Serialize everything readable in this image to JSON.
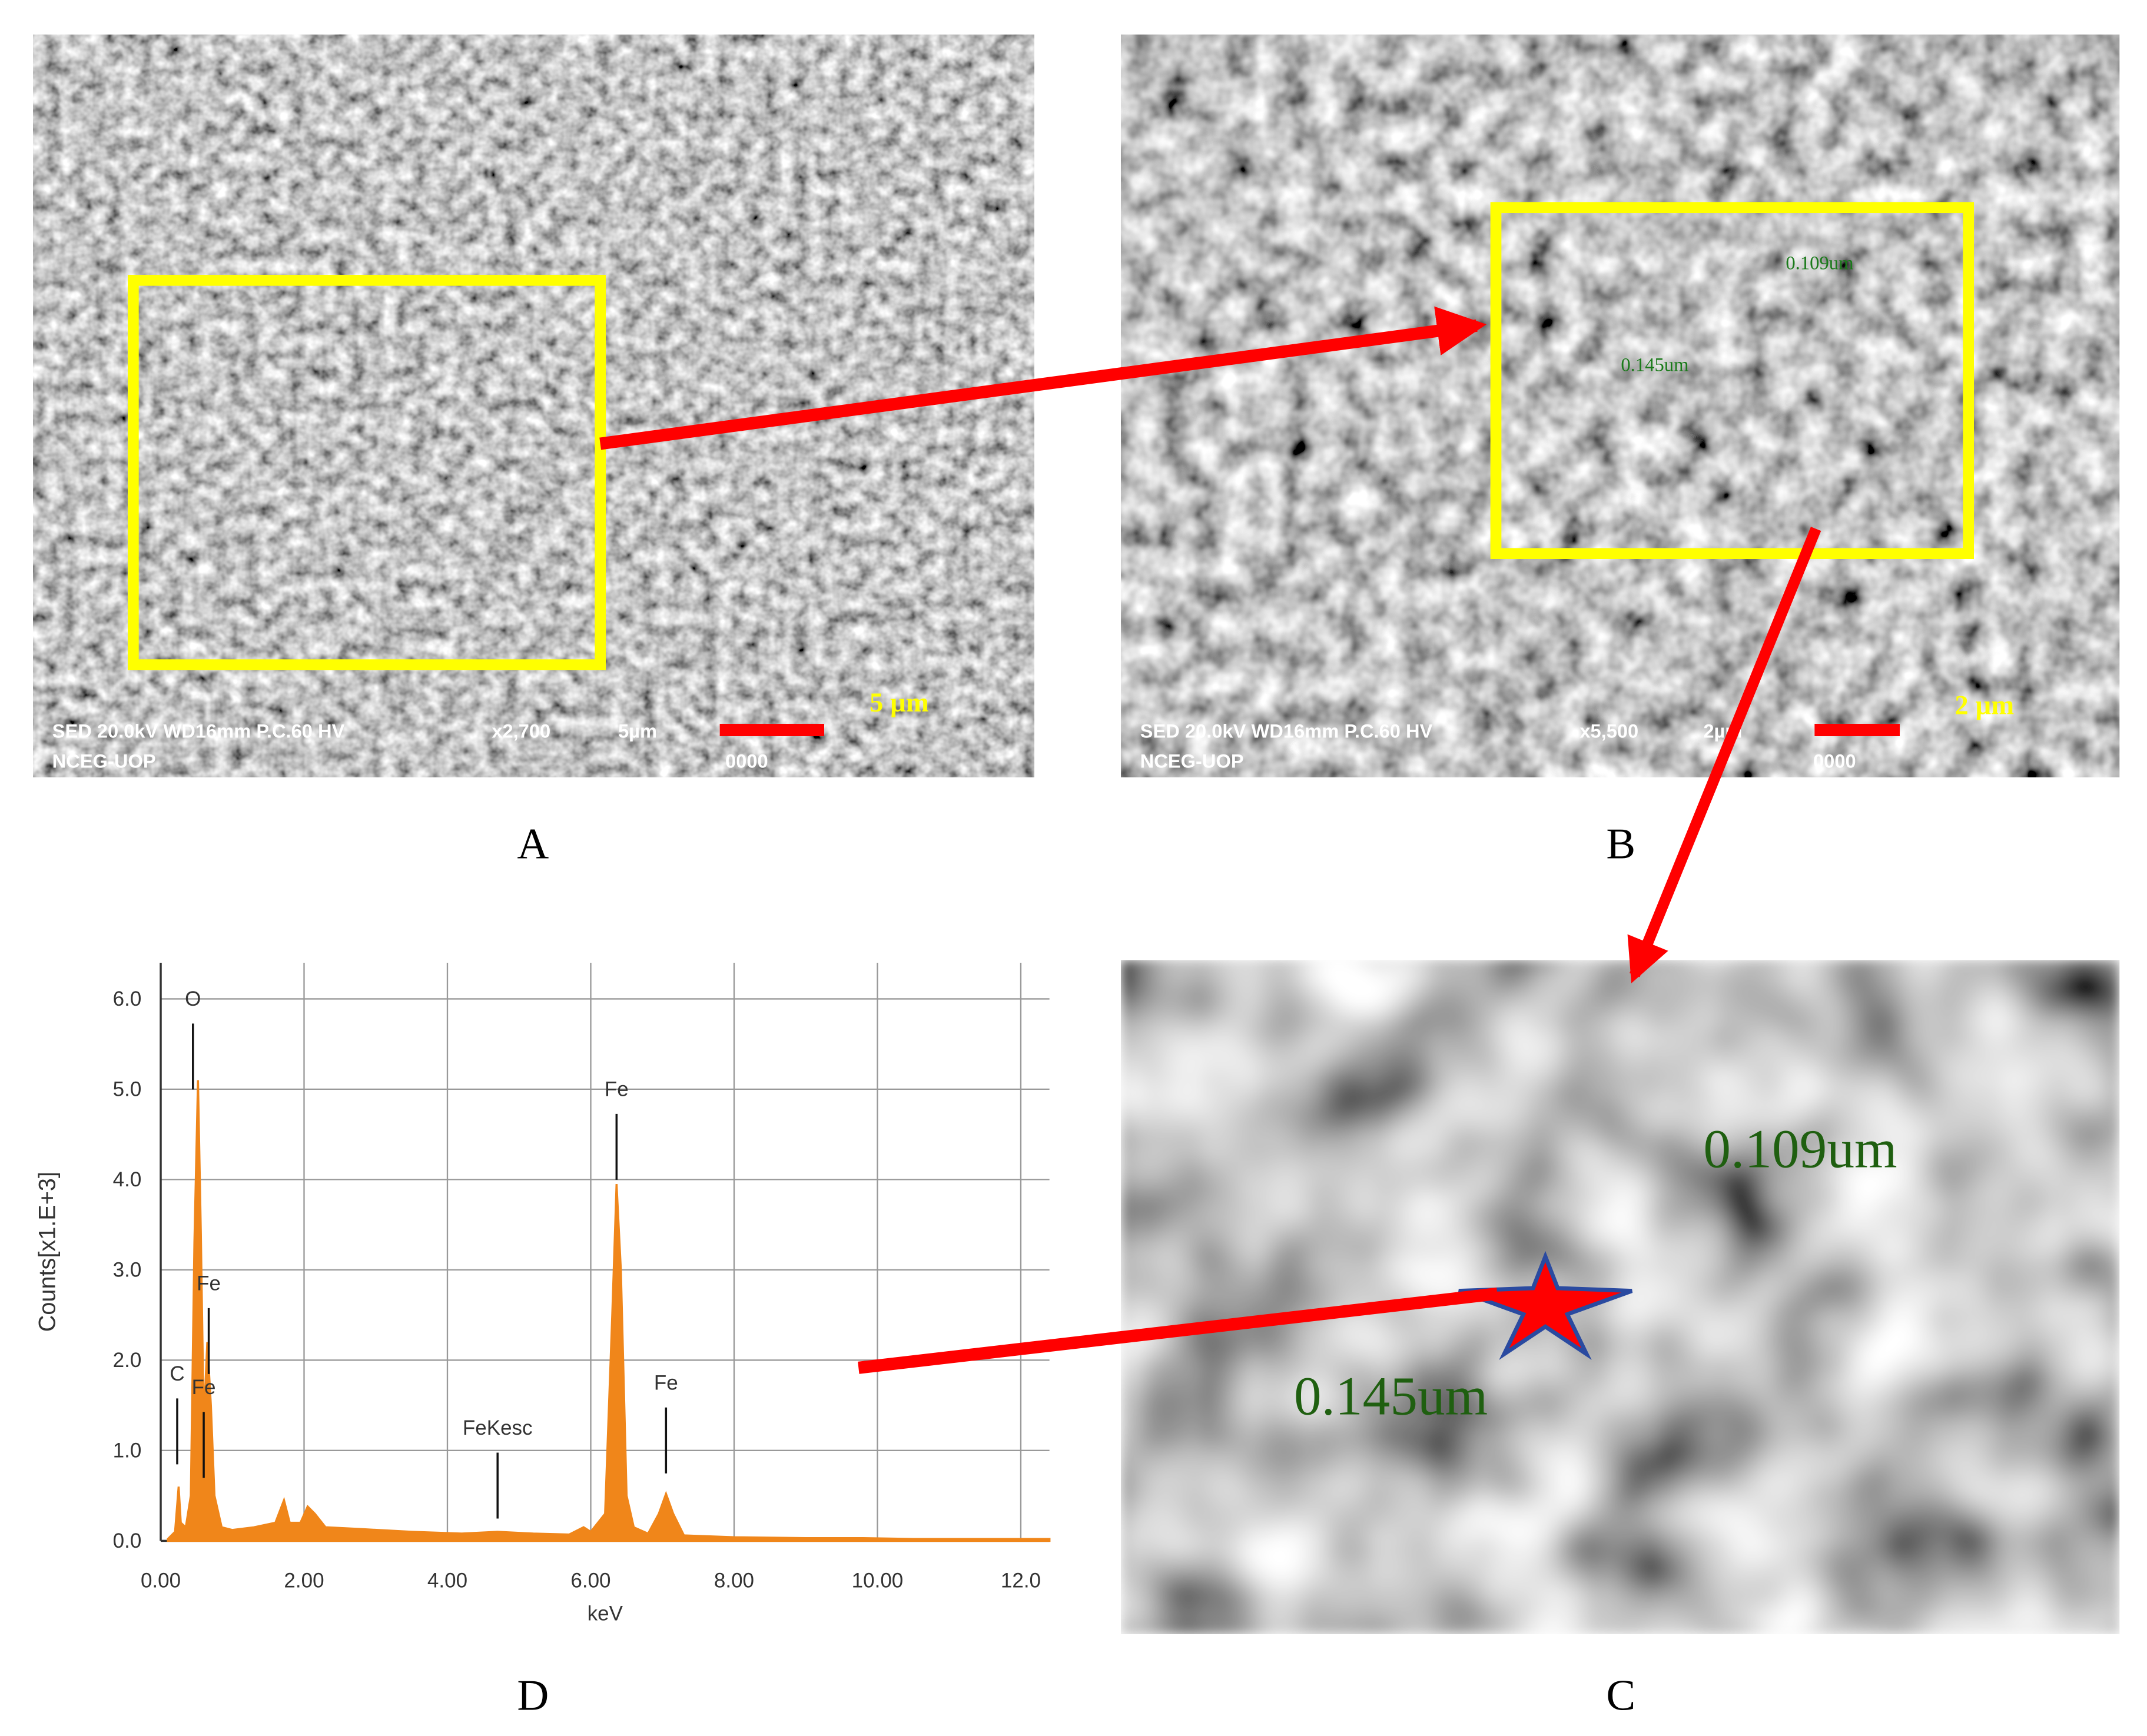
{
  "panels": {
    "A": {
      "label": "A",
      "info": "SED  20.0kV WD16mm P.C.60  HV",
      "magnification": "x2,700",
      "scale": "5µm",
      "lab": "NCEG-UOP",
      "code": "0000",
      "scale_label": "5 µm"
    },
    "B": {
      "label": "B",
      "info": "SED  20.0kV WD16mm P.C.60  HV",
      "magnification": "x5,500",
      "scale": "2µm",
      "lab": "NCEG-UOP",
      "code": "0000",
      "scale_label": "2 µm",
      "measurements": [
        "0.109um",
        "0.145um"
      ]
    },
    "C": {
      "label": "C",
      "measurements": [
        "0.109um",
        "0.145um"
      ]
    },
    "D": {
      "label": "D"
    }
  },
  "chart_data": {
    "type": "line",
    "x_label": "keV",
    "y_label": "Counts[x1.E+3]",
    "color": "#f0861a",
    "grid": true,
    "xlim": [
      0,
      12.4
    ],
    "ylim": [
      0,
      6.4
    ],
    "xticks": [
      {
        "value": 0,
        "label": "0.00"
      },
      {
        "value": 2,
        "label": "2.00"
      },
      {
        "value": 4,
        "label": "4.00"
      },
      {
        "value": 6,
        "label": "6.00"
      },
      {
        "value": 8,
        "label": "8.00"
      },
      {
        "value": 10,
        "label": "10.00"
      },
      {
        "value": 12,
        "label": "12.0"
      }
    ],
    "yticks": [
      {
        "value": 0,
        "label": "0.0"
      },
      {
        "value": 1,
        "label": "1.0"
      },
      {
        "value": 2,
        "label": "2.0"
      },
      {
        "value": 3,
        "label": "3.0"
      },
      {
        "value": 4,
        "label": "4.0"
      },
      {
        "value": 5,
        "label": "5.0"
      },
      {
        "value": 6,
        "label": "6.0"
      }
    ],
    "x": [
      0.1,
      0.2,
      0.25,
      0.28,
      0.35,
      0.42,
      0.47,
      0.52,
      0.56,
      0.6,
      0.65,
      0.7,
      0.75,
      0.85,
      1.0,
      1.3,
      1.6,
      1.72,
      1.8,
      1.95,
      2.05,
      2.15,
      2.3,
      2.8,
      3.5,
      4.2,
      4.7,
      5.2,
      5.7,
      5.9,
      6.0,
      6.2,
      6.3,
      6.36,
      6.42,
      6.5,
      6.6,
      6.8,
      6.95,
      7.05,
      7.15,
      7.3,
      8.0,
      9.0,
      9.8,
      10.5,
      12.4
    ],
    "values": [
      0.02,
      0.1,
      0.6,
      0.2,
      0.15,
      0.5,
      3.3,
      5.1,
      3.4,
      1.3,
      2.2,
      1.5,
      0.5,
      0.15,
      0.12,
      0.15,
      0.2,
      0.45,
      0.2,
      0.2,
      0.38,
      0.3,
      0.15,
      0.13,
      0.1,
      0.08,
      0.1,
      0.08,
      0.07,
      0.15,
      0.1,
      0.3,
      2.5,
      3.95,
      3.0,
      0.5,
      0.15,
      0.08,
      0.3,
      0.52,
      0.3,
      0.06,
      0.04,
      0.03,
      0.03,
      0.02,
      0.02
    ],
    "annotations": [
      {
        "text": "O",
        "x": 0.45,
        "y": 6.0
      },
      {
        "text": "C",
        "x": 0.23,
        "y": 1.85
      },
      {
        "text": "Fe",
        "x": 0.67,
        "y": 2.85
      },
      {
        "text": "Fe",
        "x": 0.6,
        "y": 1.7
      },
      {
        "text": "FeKesc",
        "x": 4.7,
        "y": 1.25
      },
      {
        "text": "Fe",
        "x": 6.36,
        "y": 5.0
      },
      {
        "text": "Fe",
        "x": 7.05,
        "y": 1.75
      }
    ]
  }
}
